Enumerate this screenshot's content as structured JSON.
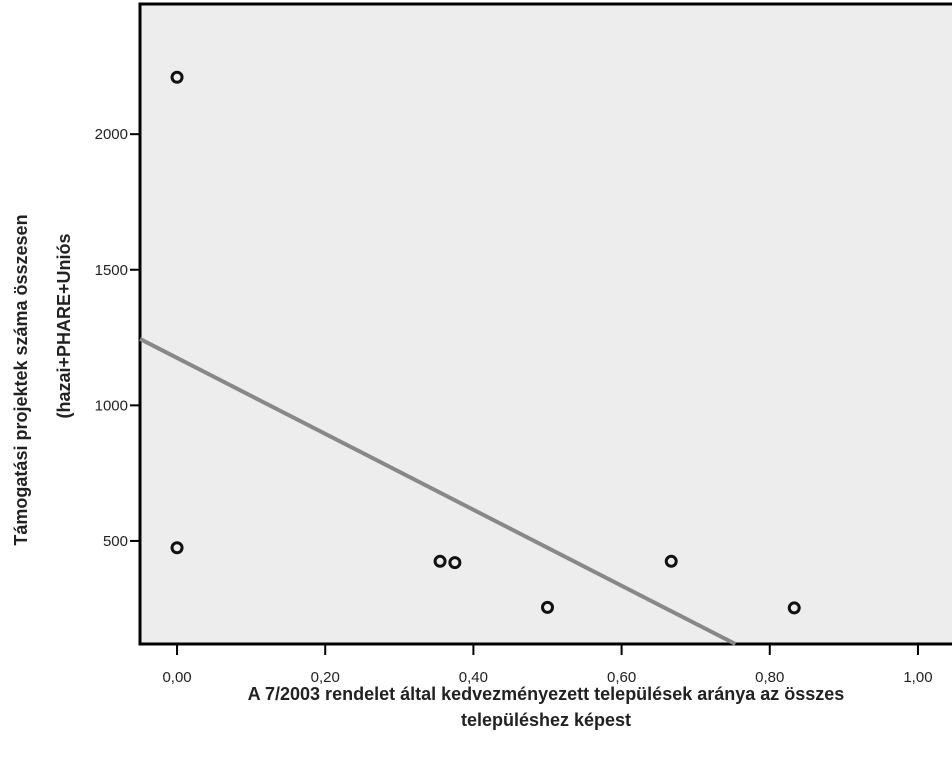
{
  "chart_data": {
    "type": "scatter",
    "xlabel_lines": [
      "A 7/2003 rendelet által kedvezményezett települések aránya az összes",
      "településhez képest"
    ],
    "ylabel_lines": [
      "Támogatási projektek száma összesen",
      "(hazai+PHARE+Uniós"
    ],
    "x_ticks": [
      0.0,
      0.2,
      0.4,
      0.6,
      0.8,
      1.0
    ],
    "x_tick_labels": [
      "0,00",
      "0,20",
      "0,40",
      "0,60",
      "0,80",
      "1,00"
    ],
    "y_ticks": [
      500,
      1000,
      1500,
      2000
    ],
    "y_tick_labels": [
      "500",
      "1000",
      "1500",
      "2000"
    ],
    "xlim": [
      -0.05,
      1.05
    ],
    "ylim": [
      120,
      2480
    ],
    "grid": false,
    "points": [
      {
        "x": 0.0,
        "y": 2210
      },
      {
        "x": 0.0,
        "y": 475
      },
      {
        "x": 0.355,
        "y": 425
      },
      {
        "x": 0.375,
        "y": 420
      },
      {
        "x": 0.5,
        "y": 255
      },
      {
        "x": 0.667,
        "y": 425
      },
      {
        "x": 0.833,
        "y": 253
      }
    ],
    "fit_line": {
      "intercept": 1175,
      "slope": -1400
    },
    "colors": {
      "plot_background": "#ededed",
      "fit_line": "#888888",
      "marker": "#111111"
    }
  }
}
